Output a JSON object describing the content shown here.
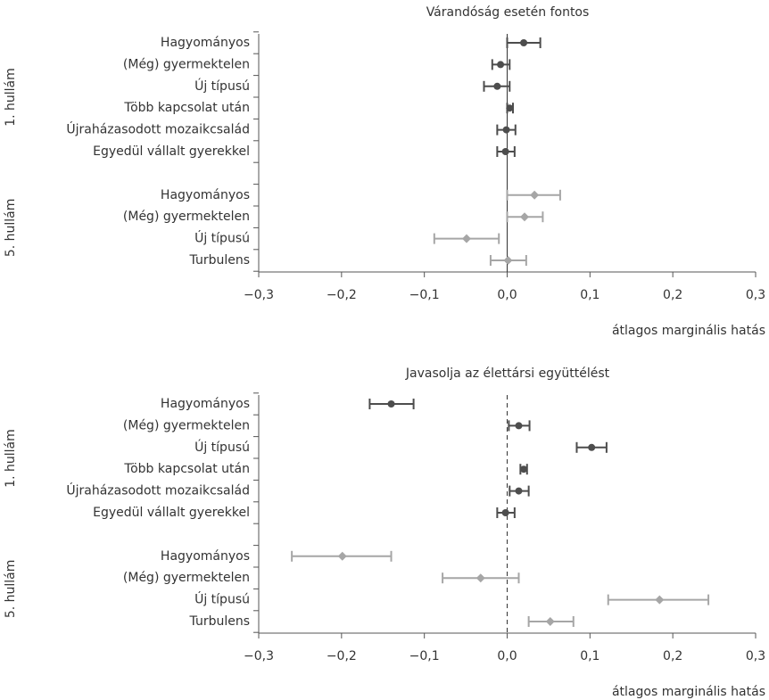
{
  "chart_data": [
    {
      "type": "errorbar",
      "title": "Várandóság esetén fontos",
      "xlabel": "átlagos marginális hatás",
      "xlim": [
        -0.3,
        0.3
      ],
      "xticks": [
        {
          "value": -0.3,
          "label": "−0,3"
        },
        {
          "value": -0.2,
          "label": "−0,2"
        },
        {
          "value": -0.1,
          "label": "−0,1"
        },
        {
          "value": 0,
          "label": "0,0"
        },
        {
          "value": 0.1,
          "label": "0,1"
        },
        {
          "value": 0.2,
          "label": "0,2"
        },
        {
          "value": 0.3,
          "label": "0,3"
        }
      ],
      "zero_line": "solid",
      "series": [
        {
          "name": "1. hullám",
          "color": "#4d4d4d",
          "marker": "circle",
          "categories": [
            "Hagyományos",
            "(Még) gyermektelen",
            "Új típusú",
            "Több kapcsolat után",
            "Újraházasodott mozaikcsalád",
            "Egyedül vállalt gyerekkel"
          ],
          "values": [
            0.02,
            -0.008,
            -0.012,
            0.003,
            -0.001,
            -0.002
          ],
          "lower": [
            0.0,
            -0.018,
            -0.028,
            0.0,
            -0.012,
            -0.012
          ],
          "upper": [
            0.04,
            0.003,
            0.003,
            0.007,
            0.01,
            0.009
          ]
        },
        {
          "name": "5. hullám",
          "color": "#a6a6a6",
          "marker": "diamond",
          "categories": [
            "Hagyományos",
            "(Még) gyermektelen",
            "Új típusú",
            "Turbulens"
          ],
          "values": [
            0.033,
            0.021,
            -0.049,
            0.001
          ],
          "lower": [
            0.0,
            0.0,
            -0.088,
            -0.02
          ],
          "upper": [
            0.064,
            0.043,
            -0.01,
            0.023
          ]
        }
      ]
    },
    {
      "type": "errorbar",
      "title": "Javasolja az élettársi együttélést",
      "xlabel": "átlagos marginális hatás",
      "xlim": [
        -0.3,
        0.3
      ],
      "xticks": [
        {
          "value": -0.3,
          "label": "−0,3"
        },
        {
          "value": -0.2,
          "label": "−0,2"
        },
        {
          "value": -0.1,
          "label": "−0,1"
        },
        {
          "value": 0,
          "label": "0,0"
        },
        {
          "value": 0.1,
          "label": "0,1"
        },
        {
          "value": 0.2,
          "label": "0,2"
        },
        {
          "value": 0.3,
          "label": "0,3"
        }
      ],
      "zero_line": "dashed",
      "series": [
        {
          "name": "1. hullám",
          "color": "#4d4d4d",
          "marker": "circle",
          "categories": [
            "Hagyományos",
            "(Még) gyermektelen",
            "Új típusú",
            "Több kapcsolat után",
            "Újraházasodott mozaikcsalád",
            "Egyedül vállalt gyerekkel"
          ],
          "values": [
            -0.14,
            0.014,
            0.102,
            0.02,
            0.014,
            -0.002
          ],
          "lower": [
            -0.166,
            0.002,
            0.084,
            0.016,
            0.003,
            -0.012
          ],
          "upper": [
            -0.113,
            0.027,
            0.12,
            0.024,
            0.026,
            0.009
          ]
        },
        {
          "name": "5. hullám",
          "color": "#a6a6a6",
          "marker": "diamond",
          "categories": [
            "Hagyományos",
            "(Még) gyermektelen",
            "Új típusú",
            "Turbulens"
          ],
          "values": [
            -0.199,
            -0.032,
            0.184,
            0.052
          ],
          "lower": [
            -0.26,
            -0.078,
            0.122,
            0.026
          ],
          "upper": [
            -0.14,
            0.014,
            0.243,
            0.08
          ]
        }
      ]
    }
  ]
}
